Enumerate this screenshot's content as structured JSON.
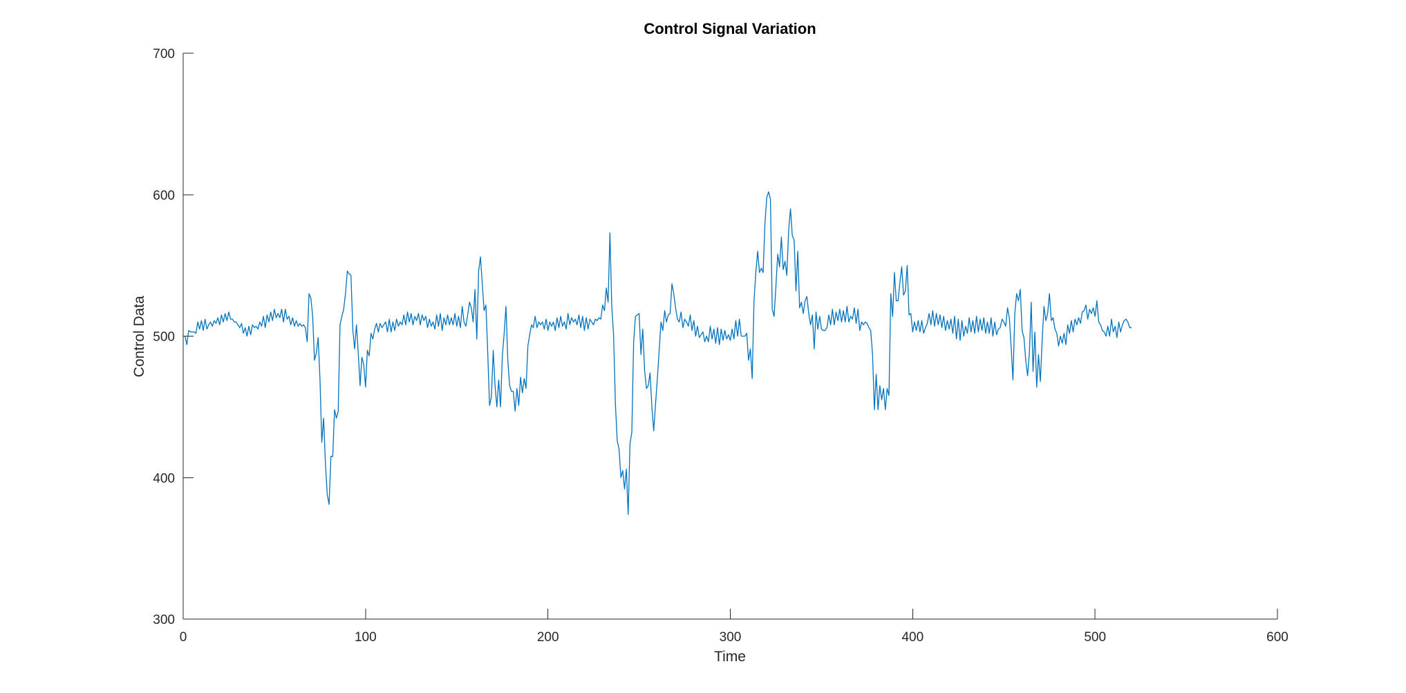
{
  "chart_data": {
    "type": "line",
    "title": "Control Signal Variation",
    "xlabel": "Time",
    "ylabel": "Control Data",
    "xlim": [
      0,
      600
    ],
    "ylim": [
      300,
      700
    ],
    "xticks": [
      0,
      100,
      200,
      300,
      400,
      500,
      600
    ],
    "yticks": [
      300,
      400,
      500,
      600,
      700
    ],
    "xtick_labels": [
      "0",
      "100",
      "200",
      "300",
      "400",
      "500",
      "600"
    ],
    "ytick_labels": [
      "300",
      "400",
      "500",
      "600",
      "700"
    ],
    "grid": false,
    "legend": "none",
    "series": [
      {
        "color": "#0072BD",
        "x_start": 1,
        "x_step": 1,
        "values": [
          500,
          494,
          504,
          503,
          503,
          503,
          502,
          510,
          505,
          511,
          504,
          512,
          505,
          508,
          510,
          507,
          511,
          509,
          513,
          508,
          515,
          510,
          516,
          511,
          517,
          512,
          512,
          510,
          510,
          508,
          506,
          509,
          502,
          506,
          500,
          507,
          501,
          508,
          506,
          507,
          505,
          510,
          507,
          514,
          506,
          515,
          510,
          517,
          511,
          519,
          513,
          516,
          513,
          519,
          510,
          519,
          512,
          514,
          508,
          513,
          507,
          511,
          507,
          509,
          507,
          508,
          506,
          496,
          530,
          527,
          514,
          483,
          488,
          499,
          470,
          425,
          442,
          410,
          388,
          381,
          415,
          415,
          448,
          442,
          447,
          508,
          514,
          519,
          530,
          546,
          544,
          543,
          505,
          491,
          508,
          488,
          465,
          485,
          480,
          464,
          490,
          486,
          502,
          498,
          505,
          509,
          503,
          509,
          506,
          508,
          510,
          503,
          512,
          503,
          510,
          504,
          512,
          507,
          510,
          508,
          515,
          508,
          517,
          510,
          516,
          508,
          514,
          511,
          516,
          508,
          515,
          511,
          514,
          506,
          512,
          507,
          510,
          505,
          515,
          507,
          516,
          504,
          513,
          508,
          515,
          508,
          513,
          508,
          516,
          507,
          514,
          506,
          521,
          510,
          507,
          515,
          524,
          520,
          510,
          533,
          498,
          546,
          556,
          537,
          518,
          522,
          488,
          451,
          457,
          490,
          465,
          450,
          469,
          450,
          486,
          502,
          521,
          483,
          465,
          461,
          461,
          447,
          463,
          451,
          471,
          460,
          470,
          463,
          493,
          501,
          508,
          506,
          514,
          506,
          510,
          508,
          510,
          505,
          512,
          504,
          510,
          507,
          510,
          504,
          513,
          506,
          514,
          507,
          510,
          505,
          516,
          508,
          513,
          510,
          512,
          508,
          515,
          506,
          514,
          504,
          513,
          505,
          512,
          510,
          508,
          512,
          511,
          513,
          512,
          522,
          518,
          534,
          524,
          573,
          521,
          501,
          452,
          426,
          420,
          400,
          405,
          392,
          406,
          374,
          424,
          432,
          496,
          514,
          515,
          516,
          487,
          505,
          476,
          463,
          465,
          474,
          450,
          433,
          452,
          470,
          490,
          510,
          504,
          518,
          510,
          515,
          516,
          537,
          530,
          520,
          512,
          510,
          517,
          506,
          512,
          510,
          507,
          515,
          504,
          511,
          500,
          507,
          499,
          501,
          503,
          496,
          500,
          496,
          507,
          498,
          505,
          495,
          506,
          494,
          505,
          497,
          504,
          498,
          501,
          497,
          505,
          498,
          511,
          500,
          512,
          500,
          500,
          500,
          502,
          483,
          491,
          470,
          525,
          545,
          560,
          545,
          548,
          545,
          580,
          598,
          602,
          597,
          519,
          514,
          535,
          558,
          549,
          570,
          547,
          553,
          543,
          575,
          590,
          571,
          568,
          532,
          560,
          520,
          524,
          516,
          525,
          528,
          516,
          508,
          515,
          491,
          517,
          505,
          514,
          505,
          504,
          504,
          506,
          515,
          508,
          519,
          508,
          517,
          511,
          519,
          510,
          518,
          510,
          521,
          510,
          514,
          512,
          520,
          509,
          519,
          504,
          510,
          508,
          510,
          509,
          506,
          504,
          487,
          448,
          473,
          448,
          465,
          455,
          463,
          448,
          463,
          458,
          530,
          514,
          545,
          525,
          525,
          538,
          549,
          529,
          532,
          550,
          515,
          516,
          503,
          510,
          504,
          511,
          503,
          511,
          502,
          506,
          509,
          516,
          508,
          518,
          507,
          516,
          508,
          515,
          506,
          514,
          504,
          511,
          505,
          512,
          502,
          514,
          498,
          512,
          497,
          511,
          500,
          507,
          502,
          513,
          503,
          511,
          502,
          514,
          503,
          512,
          504,
          513,
          502,
          510,
          502,
          513,
          500,
          510,
          501,
          505,
          506,
          512,
          510,
          507,
          520,
          513,
          492,
          469,
          516,
          530,
          525,
          533,
          504,
          499,
          483,
          472,
          488,
          524,
          475,
          503,
          464,
          487,
          468,
          497,
          521,
          511,
          516,
          530,
          511,
          513,
          505,
          502,
          493,
          500,
          495,
          502,
          494,
          508,
          502,
          511,
          503,
          512,
          508,
          513,
          509,
          517,
          518,
          522,
          512,
          519,
          516,
          520,
          514,
          525,
          510,
          508,
          504,
          503,
          500,
          507,
          500,
          512,
          503,
          507,
          499,
          510,
          503,
          508,
          511,
          512,
          510,
          506,
          506
        ]
      }
    ]
  }
}
